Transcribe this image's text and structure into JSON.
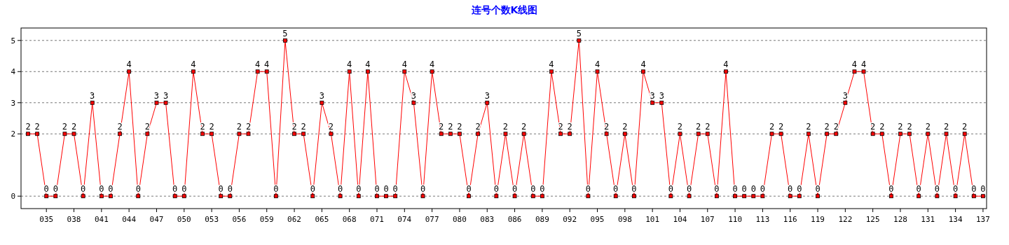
{
  "chart_data": {
    "type": "line",
    "title": "连号个数K线图",
    "categories": [
      null,
      null,
      "035",
      null,
      null,
      "038",
      null,
      null,
      "041",
      null,
      null,
      "044",
      null,
      null,
      "047",
      null,
      null,
      "050",
      null,
      null,
      "053",
      null,
      null,
      "056",
      null,
      null,
      "059",
      null,
      null,
      "062",
      null,
      null,
      "065",
      null,
      null,
      "068",
      null,
      null,
      "071",
      null,
      null,
      "074",
      null,
      null,
      "077",
      null,
      null,
      "080",
      null,
      null,
      "083",
      null,
      null,
      "086",
      null,
      null,
      "089",
      null,
      null,
      "092",
      null,
      null,
      "095",
      null,
      null,
      "098",
      null,
      null,
      "101",
      null,
      null,
      "104",
      null,
      null,
      "107",
      null,
      null,
      "110",
      null,
      null,
      "113",
      null,
      null,
      "116",
      null,
      null,
      "119",
      null,
      null,
      "122",
      null,
      null,
      "125",
      null,
      null,
      "128",
      null,
      null,
      "131",
      null,
      null,
      "134",
      null,
      null,
      "137"
    ],
    "values": [
      2,
      2,
      0,
      0,
      2,
      2,
      0,
      3,
      0,
      0,
      2,
      4,
      0,
      2,
      3,
      3,
      0,
      0,
      4,
      2,
      2,
      0,
      0,
      2,
      2,
      4,
      4,
      0,
      5,
      2,
      2,
      0,
      3,
      2,
      0,
      4,
      0,
      4,
      0,
      0,
      0,
      4,
      3,
      0,
      4,
      2,
      2,
      2,
      0,
      2,
      3,
      0,
      2,
      0,
      2,
      0,
      0,
      4,
      2,
      2,
      5,
      0,
      4,
      2,
      0,
      2,
      0,
      4,
      3,
      3,
      0,
      2,
      0,
      2,
      2,
      0,
      4,
      0,
      0,
      0,
      0,
      2,
      2,
      0,
      0,
      2,
      0,
      2,
      2,
      3,
      4,
      4,
      2,
      2,
      0,
      2,
      2,
      0,
      2,
      0,
      2,
      0,
      2,
      0,
      0
    ],
    "color": "#ff0000",
    "marker": "square",
    "line_style": "solid",
    "ylim": [
      -0.4,
      5.4
    ],
    "yticks": [
      0,
      2,
      3,
      4,
      5
    ],
    "grid": "y",
    "data_labels": true
  }
}
